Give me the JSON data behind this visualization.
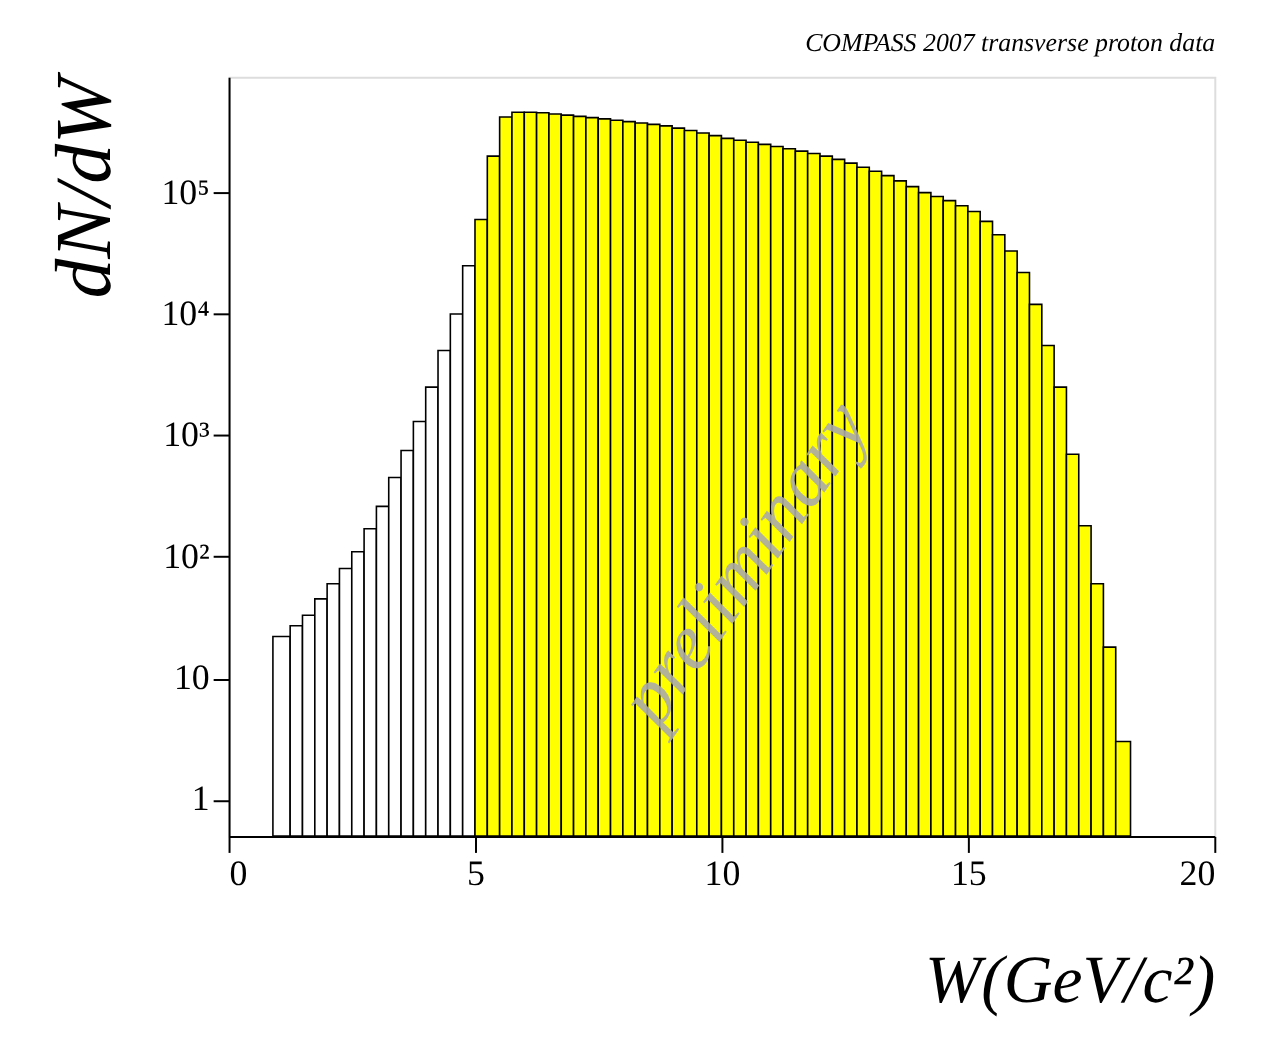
{
  "chart_data": {
    "type": "histogram",
    "title": "COMPASS 2007 transverse proton data",
    "xlabel": "W(GeV/c²)",
    "ylabel": "dN/dW",
    "bins": [
      0.9,
      1.25,
      1.5,
      1.75,
      2.0,
      2.25,
      2.5,
      2.75,
      3.0,
      3.25,
      3.5,
      3.75,
      4.0,
      4.25,
      4.5,
      4.75,
      5.0,
      5.25,
      5.5,
      5.75,
      6.0,
      6.25,
      6.5,
      6.75,
      7.0,
      7.25,
      7.5,
      7.75,
      8.0,
      8.25,
      8.5,
      8.75,
      9.0,
      9.25,
      9.5,
      9.75,
      10.0,
      10.25,
      10.5,
      10.75,
      11.0,
      11.25,
      11.5,
      11.75,
      12.0,
      12.25,
      12.5,
      12.75,
      13.0,
      13.25,
      13.5,
      13.75,
      14.0,
      14.25,
      14.5,
      14.75,
      15.0,
      15.25,
      15.5,
      15.75,
      16.0,
      16.25,
      16.5,
      16.75,
      17.0,
      17.25,
      17.5,
      17.75,
      18.0,
      18.3
    ],
    "values": [
      22,
      27,
      33,
      45,
      60,
      80,
      110,
      170,
      260,
      450,
      750,
      1300,
      2500,
      5000,
      10000,
      25000,
      60000,
      200000,
      420000,
      460000,
      460000,
      455000,
      445000,
      435000,
      425000,
      415000,
      405000,
      395000,
      385000,
      375000,
      365000,
      355000,
      340000,
      325000,
      310000,
      295000,
      280000,
      270000,
      260000,
      250000,
      240000,
      230000,
      220000,
      210000,
      200000,
      188000,
      175000,
      162000,
      150000,
      138000,
      125000,
      112000,
      100000,
      93000,
      86000,
      78000,
      70000,
      58000,
      45000,
      33000,
      22000,
      12000,
      5500,
      2500,
      700,
      180,
      60,
      18,
      3
    ],
    "colors": [
      "#ffffff",
      "#ffffff",
      "#ffffff",
      "#ffffff",
      "#ffffff",
      "#ffffff",
      "#ffffff",
      "#ffffff",
      "#ffffff",
      "#ffffff",
      "#ffffff",
      "#ffffff",
      "#ffffff",
      "#ffffff",
      "#ffffff",
      "#ffffff",
      "#ffff00",
      "#ffff00",
      "#ffff00",
      "#ffff00",
      "#ffff00",
      "#ffff00",
      "#ffff00",
      "#ffff00",
      "#ffff00",
      "#ffff00",
      "#ffff00",
      "#ffff00",
      "#ffff00",
      "#ffff00",
      "#ffff00",
      "#ffff00",
      "#ffff00",
      "#ffff00",
      "#ffff00",
      "#ffff00",
      "#ffff00",
      "#ffff00",
      "#ffff00",
      "#ffff00",
      "#ffff00",
      "#ffff00",
      "#ffff00",
      "#ffff00",
      "#ffff00",
      "#ffff00",
      "#ffff00",
      "#ffff00",
      "#ffff00",
      "#ffff00",
      "#ffff00",
      "#ffff00",
      "#ffff00",
      "#ffff00",
      "#ffff00",
      "#ffff00",
      "#ffff00",
      "#ffff00",
      "#ffff00",
      "#ffff00",
      "#ffff00",
      "#ffff00",
      "#ffff00",
      "#ffff00",
      "#ffff00",
      "#ffff00",
      "#ffff00",
      "#ffff00",
      "#ffff00"
    ],
    "xlim": [
      0,
      20
    ],
    "xticks": [
      0,
      5,
      10,
      15,
      20
    ],
    "ylim": [
      0.5,
      900000
    ],
    "log": true,
    "yticks": [
      1,
      10,
      {
        "value": 100,
        "label": "10²"
      },
      {
        "value": 1000,
        "label": "10³"
      },
      {
        "value": 10000,
        "label": "10⁴"
      },
      {
        "value": 100000,
        "label": "10⁵"
      }
    ],
    "annotations": [
      "preliminary"
    ],
    "grid": false
  }
}
